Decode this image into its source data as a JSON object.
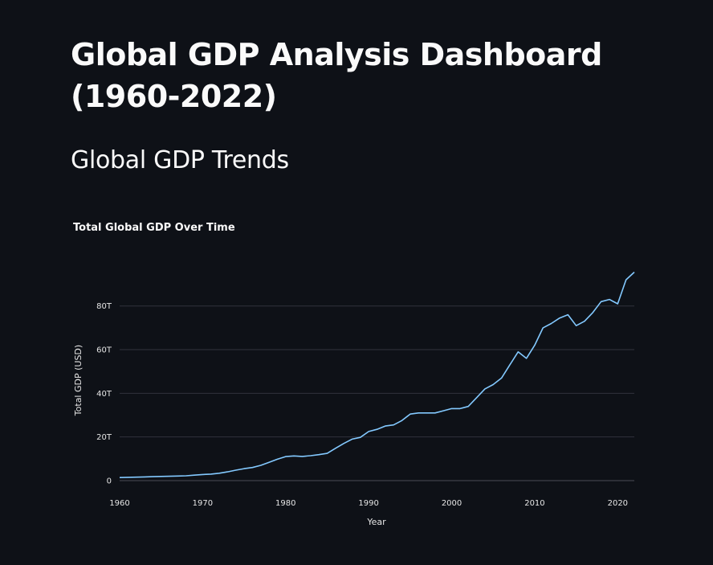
{
  "page": {
    "title": "Global GDP Analysis Dashboard (1960-2022)",
    "section_title": "Global GDP Trends"
  },
  "colors": {
    "background": "#0e1117",
    "text": "#fafafa",
    "series": "#83c9ff",
    "grid": "#31333c"
  },
  "chart_data": {
    "type": "line",
    "title": "Total Global GDP Over Time",
    "xlabel": "Year",
    "ylabel": "Total GDP (USD)",
    "xlim": [
      1960,
      2022
    ],
    "ylim": [
      0,
      95
    ],
    "y_unit": "trillion USD",
    "x_ticks": [
      "1960",
      "1970",
      "1980",
      "1990",
      "2000",
      "2010",
      "2020"
    ],
    "y_ticks": [
      "0",
      "20T",
      "40T",
      "60T",
      "80T"
    ],
    "grid": true,
    "legend": "none",
    "series": [
      {
        "x": [
          1960,
          1961,
          1962,
          1963,
          1964,
          1965,
          1966,
          1967,
          1968,
          1969,
          1970,
          1971,
          1972,
          1973,
          1974,
          1975,
          1976,
          1977,
          1978,
          1979,
          1980,
          1981,
          1982,
          1983,
          1984,
          1985,
          1986,
          1987,
          1988,
          1989,
          1990,
          1991,
          1992,
          1993,
          1994,
          1995,
          1996,
          1997,
          1998,
          1999,
          2000,
          2001,
          2002,
          2003,
          2004,
          2005,
          2006,
          2007,
          2008,
          2009,
          2010,
          2011,
          2012,
          2013,
          2014,
          2015,
          2016,
          2017,
          2018,
          2019,
          2020,
          2021,
          2022
        ],
        "values": [
          1.4,
          1.5,
          1.6,
          1.7,
          1.8,
          1.9,
          2.0,
          2.1,
          2.2,
          2.5,
          2.8,
          3.0,
          3.4,
          4.0,
          4.8,
          5.5,
          6.0,
          7.0,
          8.4,
          9.8,
          11.0,
          11.3,
          11.1,
          11.4,
          11.9,
          12.5,
          14.8,
          17.0,
          19.0,
          19.8,
          22.5,
          23.5,
          25.0,
          25.5,
          27.5,
          30.5,
          31.0,
          31.0,
          31.0,
          32.0,
          33.0,
          33.0,
          34.0,
          38.0,
          42.0,
          44.0,
          47.0,
          53.0,
          59.0,
          56.0,
          62.0,
          70.0,
          72.0,
          74.5,
          76.0,
          71.0,
          73.0,
          77.0,
          82.0,
          83.0,
          81.0,
          92.0,
          95.5
        ]
      }
    ]
  }
}
